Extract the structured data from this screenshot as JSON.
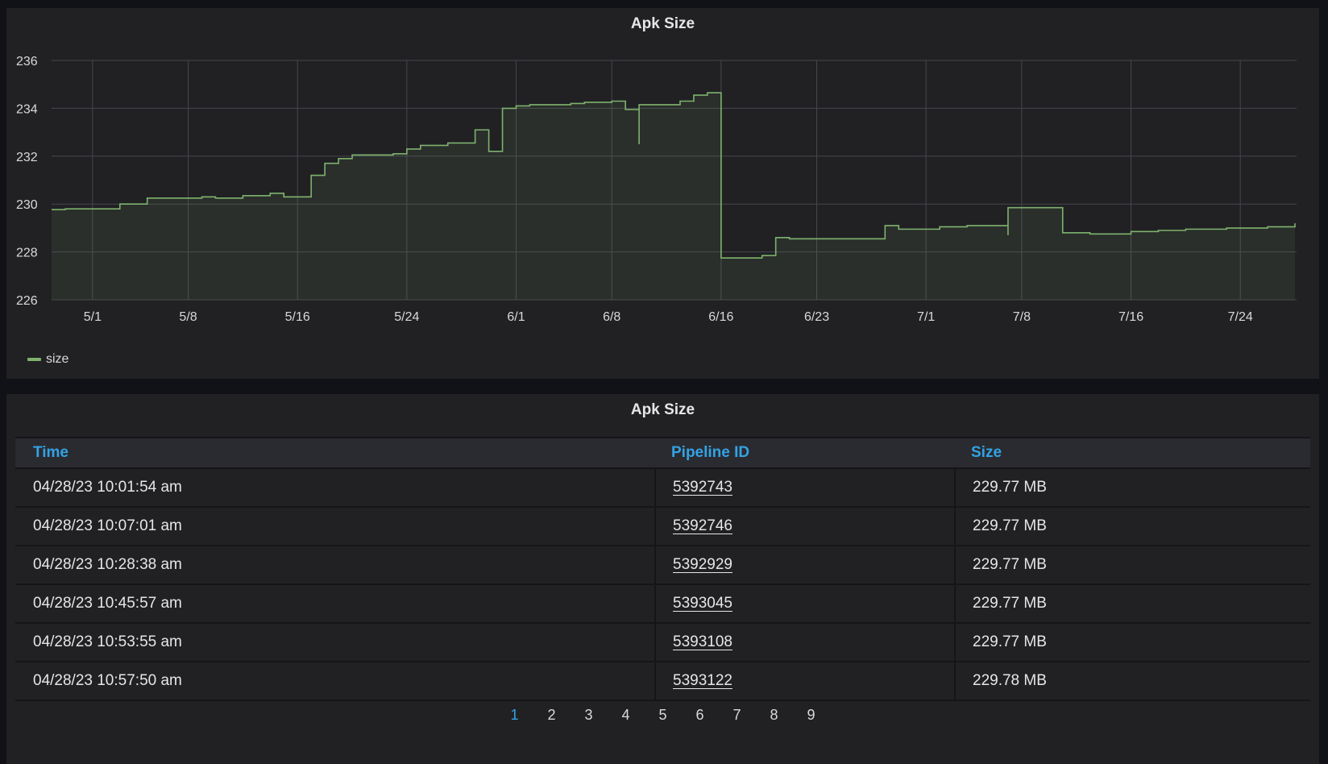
{
  "chart_panel": {
    "title": "Apk Size",
    "legend": [
      {
        "name": "size",
        "color": "#7eb26d"
      }
    ]
  },
  "chart_data": {
    "type": "area",
    "title": "Apk Size",
    "xlabel": "",
    "ylabel": "",
    "ylim": [
      226,
      236
    ],
    "y_ticks": [
      236,
      234,
      232,
      230,
      228,
      226
    ],
    "xlim": [
      "2023-04-28",
      "2023-07-28"
    ],
    "x_ticks": [
      {
        "date": "2023-05-01",
        "label": "5/1"
      },
      {
        "date": "2023-05-08",
        "label": "5/8"
      },
      {
        "date": "2023-05-16",
        "label": "5/16"
      },
      {
        "date": "2023-05-24",
        "label": "5/24"
      },
      {
        "date": "2023-06-01",
        "label": "6/1"
      },
      {
        "date": "2023-06-08",
        "label": "6/8"
      },
      {
        "date": "2023-06-16",
        "label": "6/16"
      },
      {
        "date": "2023-06-23",
        "label": "6/23"
      },
      {
        "date": "2023-07-01",
        "label": "7/1"
      },
      {
        "date": "2023-07-08",
        "label": "7/8"
      },
      {
        "date": "2023-07-16",
        "label": "7/16"
      },
      {
        "date": "2023-07-24",
        "label": "7/24"
      }
    ],
    "grid": true,
    "legend_position": "bottom-left",
    "series": [
      {
        "name": "size",
        "color": "#7eb26d",
        "step": true,
        "points": [
          [
            "2023-04-28",
            229.77
          ],
          [
            "2023-04-29",
            229.8
          ],
          [
            "2023-05-03",
            230.0
          ],
          [
            "2023-05-05",
            230.25
          ],
          [
            "2023-05-09",
            230.3
          ],
          [
            "2023-05-10",
            230.25
          ],
          [
            "2023-05-12",
            230.35
          ],
          [
            "2023-05-14",
            230.45
          ],
          [
            "2023-05-15",
            230.3
          ],
          [
            "2023-05-17",
            231.2
          ],
          [
            "2023-05-18",
            231.7
          ],
          [
            "2023-05-19",
            231.9
          ],
          [
            "2023-05-20",
            232.05
          ],
          [
            "2023-05-23",
            232.1
          ],
          [
            "2023-05-24",
            232.3
          ],
          [
            "2023-05-25",
            232.45
          ],
          [
            "2023-05-27",
            232.55
          ],
          [
            "2023-05-29",
            232.6
          ],
          [
            "2023-05-29",
            233.1
          ],
          [
            "2023-05-30",
            232.2
          ],
          [
            "2023-05-31",
            232.3
          ],
          [
            "2023-05-31",
            234.0
          ],
          [
            "2023-06-01",
            234.1
          ],
          [
            "2023-06-02",
            234.15
          ],
          [
            "2023-06-05",
            234.2
          ],
          [
            "2023-06-06",
            234.25
          ],
          [
            "2023-06-08",
            234.3
          ],
          [
            "2023-06-09",
            233.95
          ],
          [
            "2023-06-10",
            232.5
          ],
          [
            "2023-06-10",
            234.15
          ],
          [
            "2023-06-12",
            234.15
          ],
          [
            "2023-06-13",
            234.3
          ],
          [
            "2023-06-14",
            234.55
          ],
          [
            "2023-06-15",
            234.65
          ],
          [
            "2023-06-16",
            227.75
          ],
          [
            "2023-06-19",
            227.85
          ],
          [
            "2023-06-20",
            228.6
          ],
          [
            "2023-06-21",
            228.55
          ],
          [
            "2023-06-23",
            228.55
          ],
          [
            "2023-06-28",
            229.1
          ],
          [
            "2023-06-29",
            228.95
          ],
          [
            "2023-07-02",
            229.05
          ],
          [
            "2023-07-04",
            229.1
          ],
          [
            "2023-07-07",
            228.7
          ],
          [
            "2023-07-07",
            229.85
          ],
          [
            "2023-07-11",
            228.8
          ],
          [
            "2023-07-13",
            228.75
          ],
          [
            "2023-07-16",
            228.85
          ],
          [
            "2023-07-18",
            228.9
          ],
          [
            "2023-07-20",
            228.95
          ],
          [
            "2023-07-23",
            229.0
          ],
          [
            "2023-07-26",
            229.05
          ],
          [
            "2023-07-28",
            229.2
          ]
        ]
      }
    ]
  },
  "table_panel": {
    "title": "Apk Size",
    "columns": {
      "time": "Time",
      "pipeline": "Pipeline ID",
      "size": "Size"
    },
    "rows": [
      {
        "time": "04/28/23 10:01:54 am",
        "pipeline": "5392743",
        "size": "229.77 MB"
      },
      {
        "time": "04/28/23 10:07:01 am",
        "pipeline": "5392746",
        "size": "229.77 MB"
      },
      {
        "time": "04/28/23 10:28:38 am",
        "pipeline": "5392929",
        "size": "229.77 MB"
      },
      {
        "time": "04/28/23 10:45:57 am",
        "pipeline": "5393045",
        "size": "229.77 MB"
      },
      {
        "time": "04/28/23 10:53:55 am",
        "pipeline": "5393108",
        "size": "229.77 MB"
      },
      {
        "time": "04/28/23 10:57:50 am",
        "pipeline": "5393122",
        "size": "229.78 MB"
      }
    ],
    "pagination": {
      "pages": [
        "1",
        "2",
        "3",
        "4",
        "5",
        "6",
        "7",
        "8",
        "9"
      ],
      "current": "1"
    }
  }
}
